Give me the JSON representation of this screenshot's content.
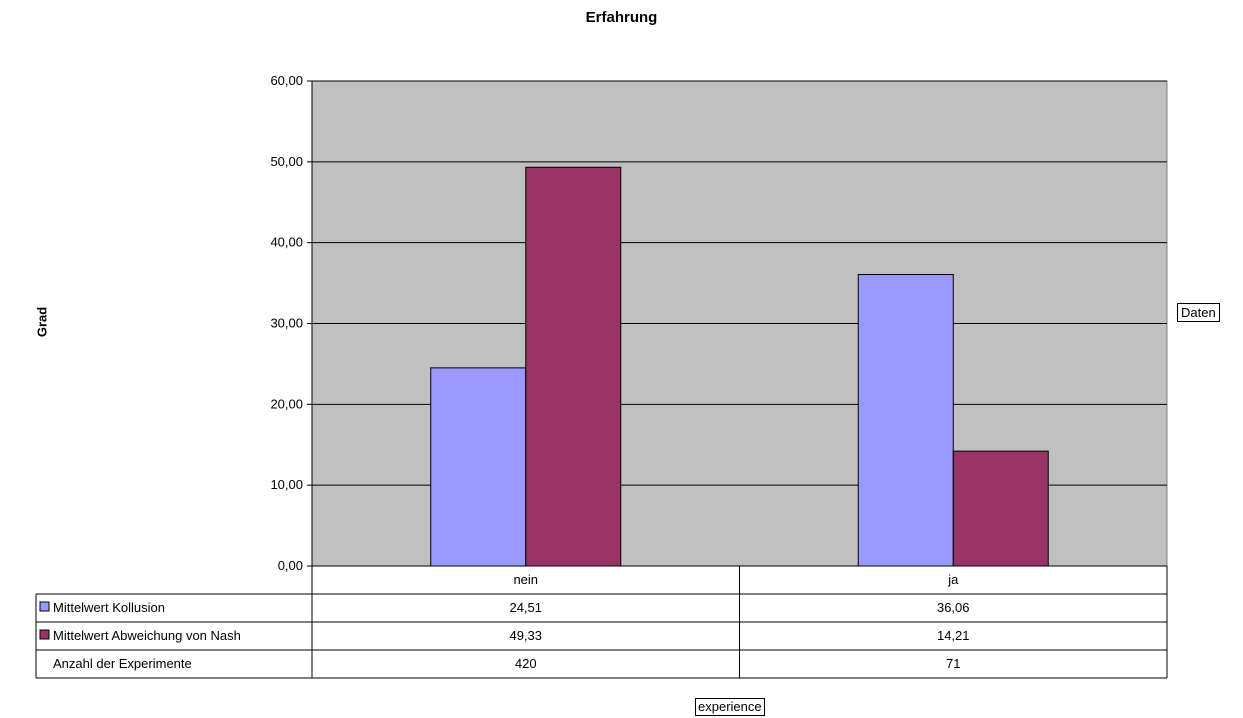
{
  "chart_data": {
    "type": "bar",
    "title": "Erfahrung",
    "ylabel": "Grad",
    "xlabel": "experience",
    "series_field_label": "Daten",
    "ylim": [
      0,
      60
    ],
    "yticks": [
      "0,00",
      "10,00",
      "20,00",
      "30,00",
      "40,00",
      "50,00",
      "60,00"
    ],
    "grid": true,
    "categories": [
      "nein",
      "ja"
    ],
    "series": [
      {
        "name": "Mittelwert Kollusion",
        "values": [
          24.51,
          36.06
        ],
        "labels": [
          "24,51",
          "36,06"
        ],
        "color": "#9999ff"
      },
      {
        "name": "Mittelwert Abweichung von Nash",
        "values": [
          49.33,
          14.21
        ],
        "labels": [
          "49,33",
          "14,21"
        ],
        "color": "#993366"
      }
    ],
    "extra_rows": [
      {
        "name": "Anzahl der Experimente",
        "values": [
          "420",
          "71"
        ]
      }
    ],
    "plot_background": "#c0c0c0"
  }
}
